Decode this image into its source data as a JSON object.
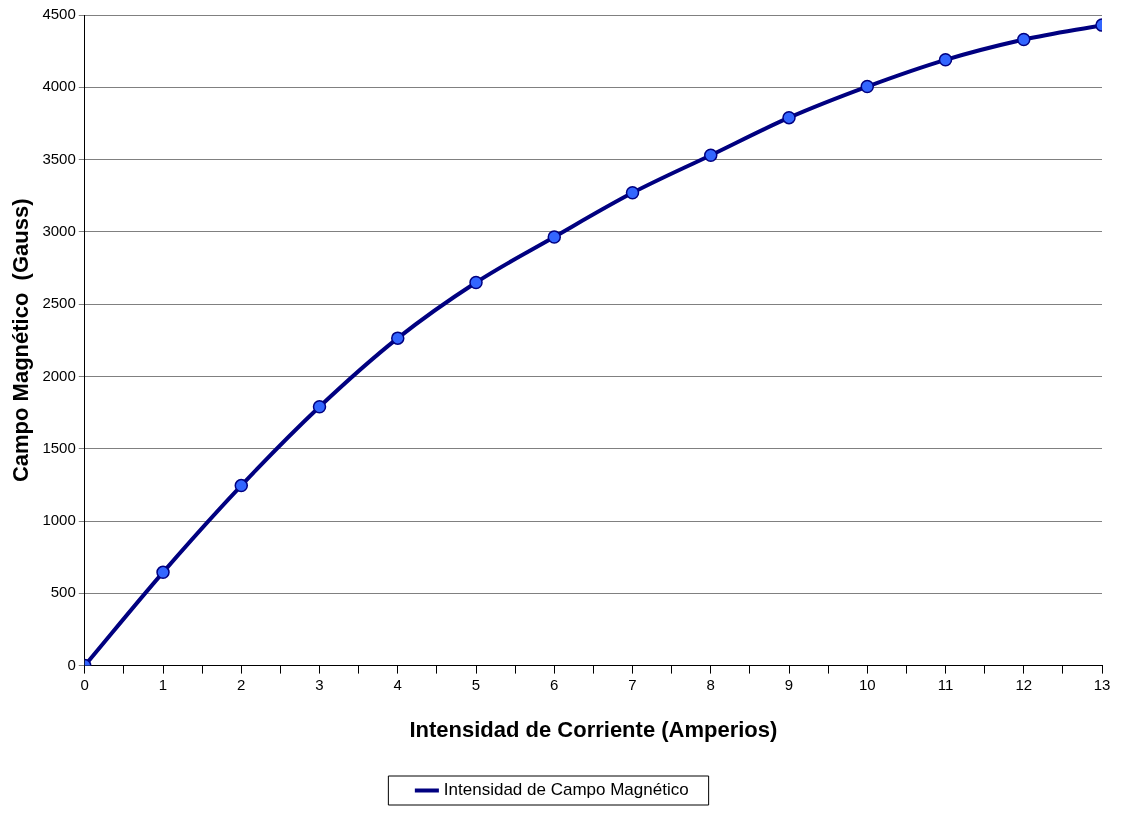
{
  "chart_data": {
    "type": "line",
    "xlabel": "Intensidad de Corriente (Amperios)",
    "ylabel": "Campo Magnético  (Gauss)",
    "x": [
      0,
      1,
      2,
      3,
      4,
      5,
      6,
      7,
      8,
      9,
      10,
      11,
      12,
      13
    ],
    "series": [
      {
        "name": "Intensidad de Campo Magnético",
        "color": "#000080",
        "values": [
          0,
          645,
          1245,
          1790,
          2265,
          2650,
          2965,
          3270,
          3530,
          3790,
          4005,
          4190,
          4330,
          4430
        ]
      }
    ],
    "xlim": [
      0,
      13
    ],
    "xticks": [
      0,
      {
        "value": 0.5,
        "label": null
      },
      1,
      {
        "value": 1.5,
        "label": null
      },
      2,
      {
        "value": 2.5,
        "label": null
      },
      3,
      {
        "value": 3.5,
        "label": null
      },
      4,
      {
        "value": 4.5,
        "label": null
      },
      5,
      {
        "value": 5.5,
        "label": null
      },
      6,
      {
        "value": 6.5,
        "label": null
      },
      7,
      {
        "value": 7.5,
        "label": null
      },
      8,
      {
        "value": 8.5,
        "label": null
      },
      9,
      {
        "value": 9.5,
        "label": null
      },
      10,
      {
        "value": 10.5,
        "label": null
      },
      11,
      {
        "value": 11.5,
        "label": null
      },
      12,
      {
        "value": 12.5,
        "label": null
      },
      13
    ],
    "ylim": [
      0,
      4500
    ],
    "yticks": [
      0,
      500,
      1000,
      1500,
      2000,
      2500,
      3000,
      3500,
      4000,
      4500
    ],
    "grid": "y",
    "legend": "bottom",
    "marker": "circle",
    "line_style": "solid"
  }
}
